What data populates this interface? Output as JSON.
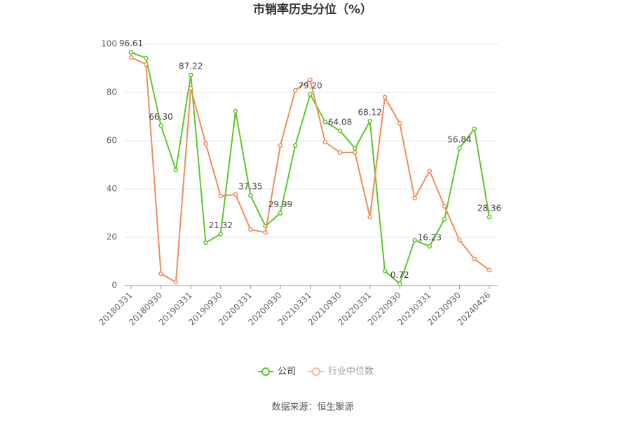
{
  "chart_data": {
    "type": "line",
    "title": "市销率历史分位（%）",
    "categories": [
      "20180331",
      null,
      "20180930",
      null,
      "20190331",
      null,
      "20190930",
      null,
      "20200331",
      null,
      "20200930",
      null,
      "20210331",
      null,
      "20210930",
      null,
      "20220331",
      null,
      "20220930",
      null,
      "20230331",
      null,
      "20230930",
      null,
      "20240426"
    ],
    "series": [
      {
        "name": "公司",
        "color": "#5cc72a",
        "values": [
          96.61,
          94.2,
          66.3,
          47.8,
          87.22,
          17.7,
          21.32,
          72.2,
          37.35,
          24.6,
          29.99,
          58.0,
          79.2,
          67.8,
          64.08,
          56.8,
          68.12,
          6.1,
          0.72,
          18.8,
          16.23,
          27.5,
          56.84,
          64.9,
          28.36
        ],
        "value_labels": [
          "96.61",
          null,
          "66.30",
          null,
          "87.22",
          null,
          "21.32",
          null,
          "37.35",
          null,
          "29.99",
          null,
          "79.20",
          null,
          "64.08",
          null,
          "68.12",
          null,
          "0.72",
          null,
          "16.23",
          null,
          "56.84",
          null,
          "28.36"
        ]
      },
      {
        "name": "行业中位数",
        "color": "#f08c5a",
        "values": [
          94.5,
          91.6,
          4.9,
          1.4,
          81.7,
          58.8,
          37.1,
          37.7,
          23.2,
          22.0,
          58.0,
          80.9,
          85.2,
          59.4,
          55.1,
          55.1,
          28.4,
          78.0,
          67.2,
          36.2,
          47.5,
          32.8,
          18.8,
          11.0,
          6.4
        ]
      }
    ],
    "ylim": [
      0,
      100
    ],
    "yticks": [
      0,
      20,
      40,
      60,
      80,
      100
    ],
    "grid": true,
    "legend": "bottom",
    "source": "数据来源：恒生聚源"
  }
}
